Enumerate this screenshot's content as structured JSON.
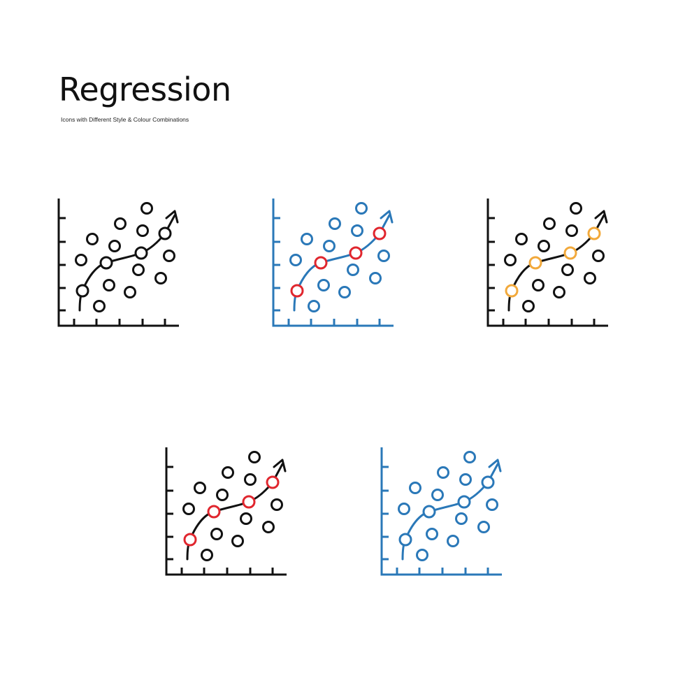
{
  "header": {
    "title": "Regression",
    "subtitle": "Icons with Different Style & Colour Combinations"
  },
  "colors": {
    "black": "#111111",
    "blue": "#2a78b8",
    "red": "#e0262e",
    "orange": "#f2a93b"
  },
  "icons": [
    {
      "name": "regression-icon-black",
      "axis": "black",
      "scatter": "black",
      "curve": "black",
      "trend_points": "black"
    },
    {
      "name": "regression-icon-blue-red",
      "axis": "blue",
      "scatter": "blue",
      "curve": "blue",
      "trend_points": "red"
    },
    {
      "name": "regression-icon-black-orange",
      "axis": "black",
      "scatter": "black",
      "curve": "black",
      "trend_points": "orange"
    },
    {
      "name": "regression-icon-black-red",
      "axis": "black",
      "scatter": "black",
      "curve": "black",
      "trend_points": "red"
    },
    {
      "name": "regression-icon-blue",
      "axis": "blue",
      "scatter": "blue",
      "curve": "blue",
      "trend_points": "blue"
    }
  ]
}
